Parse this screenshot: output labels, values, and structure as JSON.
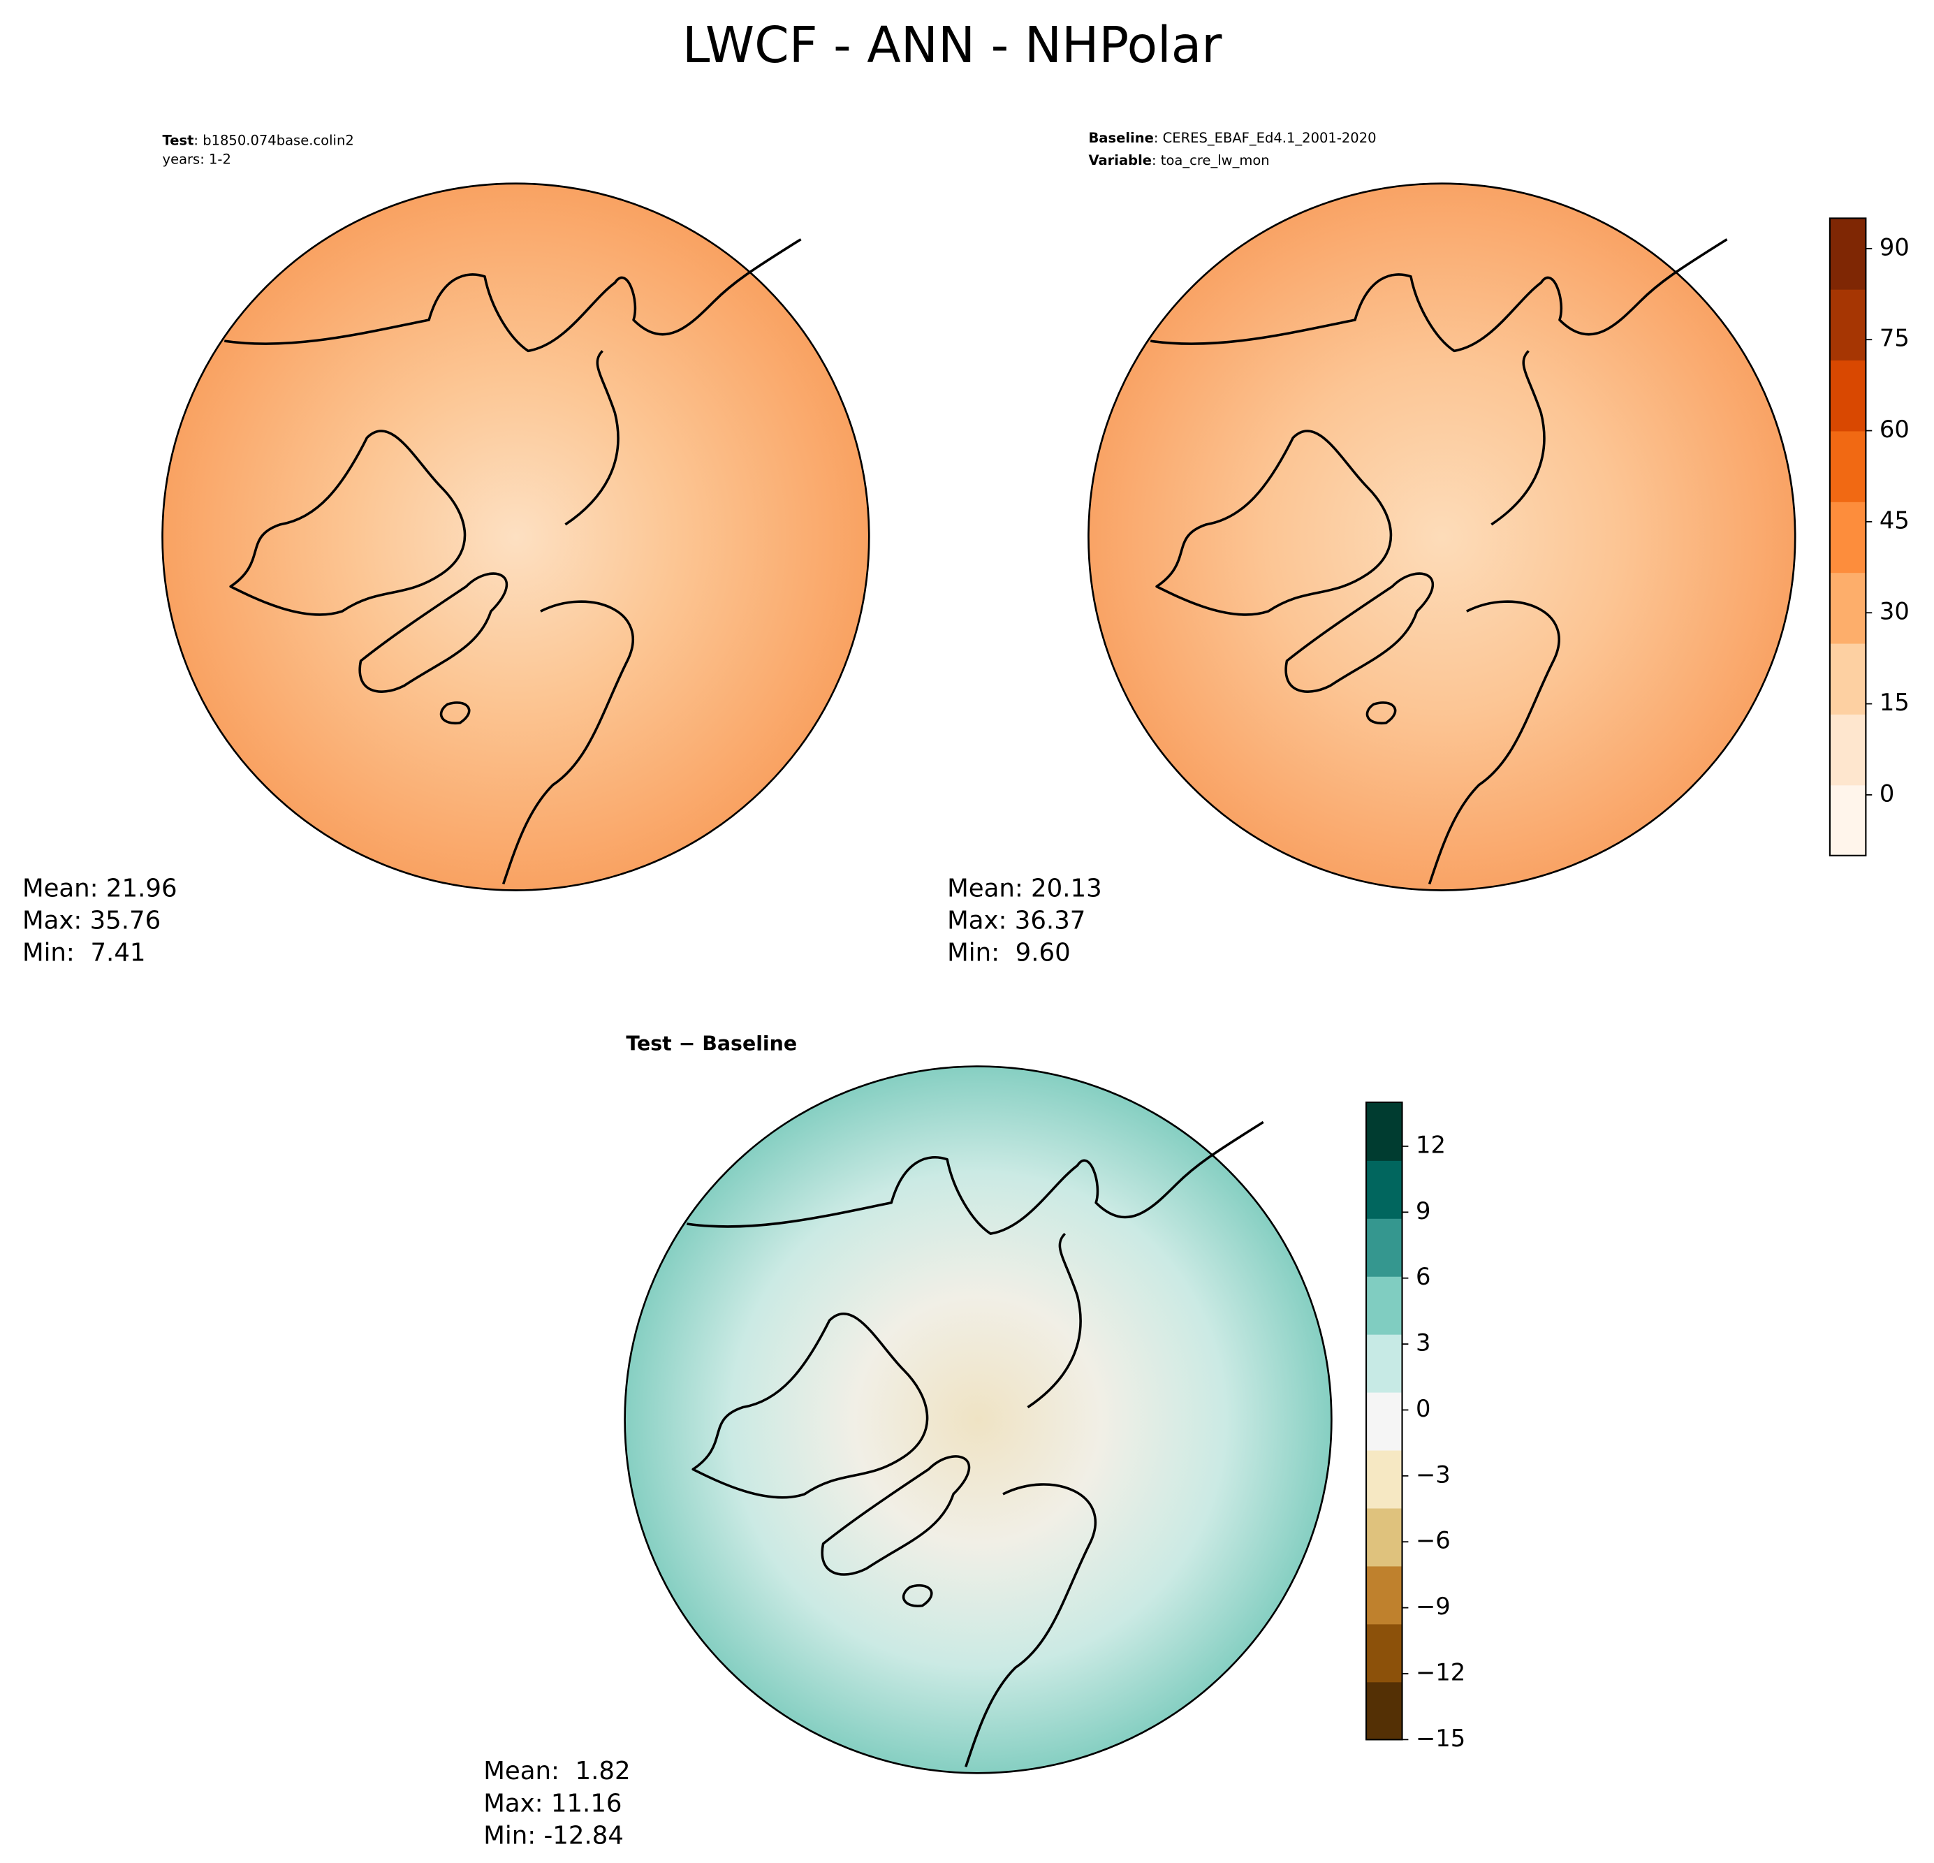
{
  "title": "LWCF - ANN - NHPolar",
  "panels": [
    {
      "header": [
        {
          "label": "Test",
          "text": ": b1850.074base.colin2"
        }
      ],
      "subheader": "years: 1-2",
      "stats": [
        "Mean: 21.96",
        "Max: 35.76",
        "Min:  7.41"
      ]
    },
    {
      "header": [
        {
          "label": "Baseline",
          "text": ": CERES_EBAF_Ed4.1_2001-2020"
        },
        {
          "label": "Variable",
          "text": ": toa_cre_lw_mon"
        }
      ],
      "stats": [
        "Mean: 20.13",
        "Max: 36.37",
        "Min:  9.60"
      ]
    },
    {
      "title": "Test − Baseline",
      "stats": [
        "Mean:  1.82",
        "Max: 11.16",
        "Min: -12.84"
      ]
    }
  ],
  "colorbars": [
    {
      "lim": [
        -10,
        95
      ],
      "ticks": [
        0,
        15,
        30,
        45,
        60,
        75,
        90
      ],
      "colors": [
        "#fff5eb",
        "#fee6ce",
        "#fdd0a2",
        "#fdae6b",
        "#fd8d3c",
        "#f16913",
        "#d94801",
        "#a63603",
        "#7f2704"
      ]
    },
    {
      "lim": [
        -15,
        14
      ],
      "ticks": [
        {
          "value": -15,
          "label": "−15"
        },
        {
          "value": -12,
          "label": "−12"
        },
        {
          "value": -9,
          "label": "−9"
        },
        {
          "value": -6,
          "label": "−6"
        },
        {
          "value": -3,
          "label": "−3"
        },
        0,
        3,
        6,
        9,
        12
      ],
      "colors": [
        "#543005",
        "#8c510a",
        "#bf812d",
        "#dfc27d",
        "#f6e8c3",
        "#f5f5f5",
        "#c7eae5",
        "#80cdc1",
        "#35978f",
        "#01665e",
        "#003c30"
      ]
    }
  ]
}
